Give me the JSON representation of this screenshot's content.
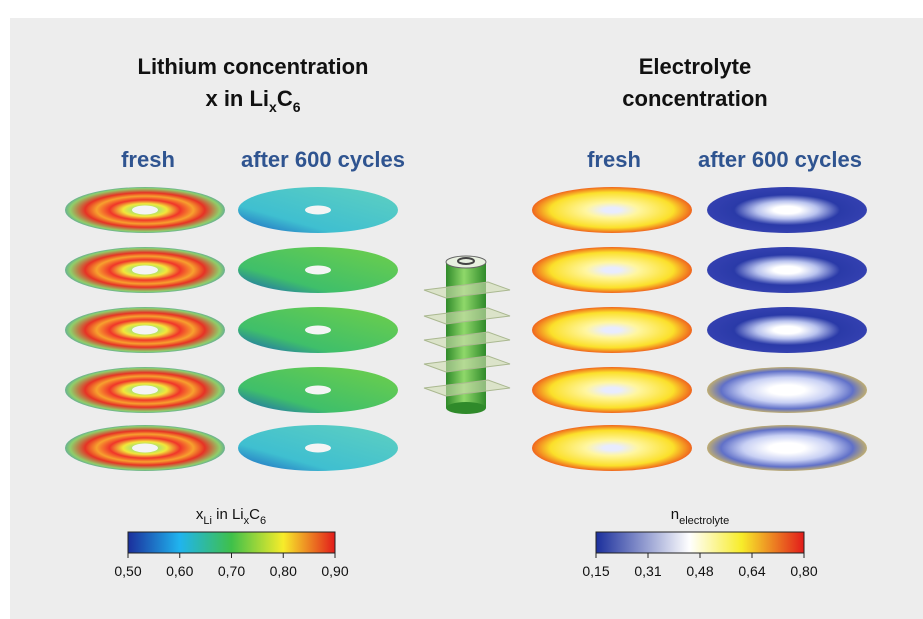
{
  "left": {
    "title_line1": "Lithium concentration",
    "title_line2": [
      "x in Li",
      "x",
      "C",
      "6"
    ],
    "columns": [
      "fresh",
      "after 600 cycles"
    ],
    "colorbar": {
      "label": [
        "x",
        "Li",
        " in Li",
        "x",
        "C",
        "6"
      ],
      "ticks": [
        "0,50",
        "0,60",
        "0,70",
        "0,80",
        "0,90"
      ]
    }
  },
  "right": {
    "title_line1": "Electrolyte",
    "title_line2": "concentration",
    "columns": [
      "fresh",
      "after 600 cycles"
    ],
    "colorbar": {
      "label": [
        "n",
        "electrolyte"
      ],
      "ticks": [
        "0,15",
        "0,31",
        "0,48",
        "0,64",
        "0,80"
      ]
    }
  }
}
